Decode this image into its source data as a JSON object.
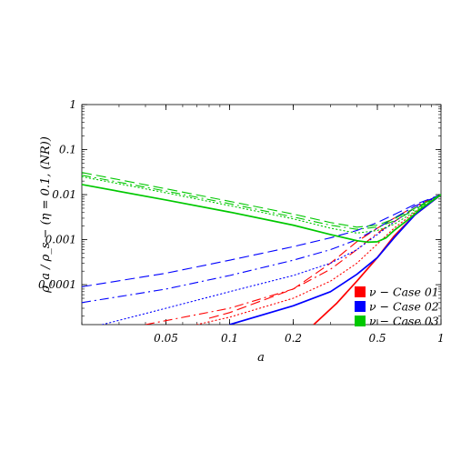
{
  "chart_data": {
    "type": "line",
    "xlabel": "a",
    "ylabel": "ρ_a / ρ_s − (η = 0.1, (NR))",
    "xscale": "log",
    "yscale": "log",
    "xlim": [
      0.02,
      1
    ],
    "ylim": [
      1.3e-05,
      1
    ],
    "grid": false,
    "legend_position": "bottom-right",
    "xticks": [
      {
        "value": 0.05,
        "label": "0.05"
      },
      {
        "value": 0.1,
        "label": "0.1"
      },
      {
        "value": 0.2,
        "label": "0.2"
      },
      {
        "value": 0.5,
        "label": "0.5"
      },
      {
        "value": 1,
        "label": "1"
      }
    ],
    "yticks": [
      {
        "value": 1,
        "label": "1"
      },
      {
        "value": 0.1,
        "label": "0.1"
      },
      {
        "value": 0.01,
        "label": "0.01"
      },
      {
        "value": 0.001,
        "label": "0.001"
      },
      {
        "value": 0.0001,
        "label": "0.0001"
      }
    ],
    "legend": [
      {
        "label": "ν − Case 01",
        "color": "#ff0000"
      },
      {
        "label": "ν − Case 02",
        "color": "#0000ff"
      },
      {
        "label": "ν − Case 03",
        "color": "#00c800"
      }
    ],
    "series": [
      {
        "group": 1,
        "color": "#ff0000",
        "style": "solid",
        "points": [
          [
            0.25,
            1.3e-05
          ],
          [
            0.32,
            3.8e-05
          ],
          [
            0.4,
            0.00012
          ],
          [
            0.5,
            0.0004
          ],
          [
            0.6,
            0.0012
          ],
          [
            0.75,
            0.0035
          ],
          [
            1,
            0.01
          ]
        ]
      },
      {
        "group": 1,
        "color": "#ff0000",
        "style": "dot",
        "points": [
          [
            0.07,
            1.3e-05
          ],
          [
            0.1,
            1.9e-05
          ],
          [
            0.2,
            5e-05
          ],
          [
            0.3,
            0.00012
          ],
          [
            0.4,
            0.0003
          ],
          [
            0.5,
            0.0008
          ],
          [
            0.6,
            0.0018
          ],
          [
            0.75,
            0.004
          ],
          [
            1,
            0.01
          ]
        ]
      },
      {
        "group": 1,
        "color": "#ff0000",
        "style": "dashdot",
        "points": [
          [
            0.04,
            1.3e-05
          ],
          [
            0.1,
            3e-05
          ],
          [
            0.2,
            8e-05
          ],
          [
            0.3,
            0.00022
          ],
          [
            0.4,
            0.0006
          ],
          [
            0.5,
            0.0014
          ],
          [
            0.6,
            0.0025
          ],
          [
            0.75,
            0.005
          ],
          [
            1,
            0.01
          ]
        ]
      },
      {
        "group": 1,
        "color": "#ff0000",
        "style": "dash",
        "points": [
          [
            0.08,
            1.8e-05
          ],
          [
            0.1,
            2.4e-05
          ],
          [
            0.2,
            8e-05
          ],
          [
            0.3,
            0.0003
          ],
          [
            0.4,
            0.0009
          ],
          [
            0.5,
            0.0018
          ],
          [
            0.6,
            0.003
          ],
          [
            0.75,
            0.0055
          ],
          [
            1,
            0.01
          ]
        ]
      },
      {
        "group": 2,
        "color": "#0000ff",
        "style": "solid",
        "points": [
          [
            0.1,
            1.3e-05
          ],
          [
            0.2,
            3.4e-05
          ],
          [
            0.3,
            7e-05
          ],
          [
            0.4,
            0.00017
          ],
          [
            0.5,
            0.0004
          ],
          [
            0.6,
            0.0011
          ],
          [
            0.75,
            0.0035
          ],
          [
            1,
            0.01
          ]
        ]
      },
      {
        "group": 2,
        "color": "#0000ff",
        "style": "dot",
        "points": [
          [
            0.025,
            1.3e-05
          ],
          [
            0.05,
            3e-05
          ],
          [
            0.1,
            7e-05
          ],
          [
            0.2,
            0.00016
          ],
          [
            0.3,
            0.0003
          ],
          [
            0.4,
            0.0006
          ],
          [
            0.5,
            0.0013
          ],
          [
            0.6,
            0.0025
          ],
          [
            0.75,
            0.005
          ],
          [
            1,
            0.01
          ]
        ]
      },
      {
        "group": 2,
        "color": "#0000ff",
        "style": "dashdot",
        "points": [
          [
            0.02,
            4e-05
          ],
          [
            0.05,
            8e-05
          ],
          [
            0.1,
            0.00016
          ],
          [
            0.2,
            0.00035
          ],
          [
            0.3,
            0.0006
          ],
          [
            0.4,
            0.001
          ],
          [
            0.5,
            0.0018
          ],
          [
            0.6,
            0.003
          ],
          [
            0.75,
            0.0055
          ],
          [
            1,
            0.01
          ]
        ]
      },
      {
        "group": 2,
        "color": "#0000ff",
        "style": "dash",
        "points": [
          [
            0.02,
            9e-05
          ],
          [
            0.05,
            0.00018
          ],
          [
            0.1,
            0.00035
          ],
          [
            0.2,
            0.0007
          ],
          [
            0.3,
            0.0011
          ],
          [
            0.4,
            0.0016
          ],
          [
            0.5,
            0.0024
          ],
          [
            0.6,
            0.0036
          ],
          [
            0.75,
            0.006
          ],
          [
            1,
            0.01
          ]
        ]
      },
      {
        "group": 3,
        "color": "#00c800",
        "style": "solid",
        "points": [
          [
            0.02,
            0.0168
          ],
          [
            0.05,
            0.0076
          ],
          [
            0.1,
            0.0041
          ],
          [
            0.2,
            0.0021
          ],
          [
            0.3,
            0.0013
          ],
          [
            0.4,
            0.00095
          ],
          [
            0.45,
            0.00088
          ],
          [
            0.5,
            0.0009
          ],
          [
            0.55,
            0.0011
          ],
          [
            0.6,
            0.0016
          ],
          [
            0.7,
            0.0028
          ],
          [
            0.8,
            0.0048
          ],
          [
            1,
            0.01
          ]
        ]
      },
      {
        "group": 3,
        "color": "#00c800",
        "style": "dot",
        "points": [
          [
            0.02,
            0.025
          ],
          [
            0.05,
            0.011
          ],
          [
            0.1,
            0.0057
          ],
          [
            0.2,
            0.0029
          ],
          [
            0.3,
            0.0018
          ],
          [
            0.4,
            0.0014
          ],
          [
            0.5,
            0.0016
          ],
          [
            0.6,
            0.0022
          ],
          [
            0.75,
            0.0042
          ],
          [
            1,
            0.01
          ]
        ]
      },
      {
        "group": 3,
        "color": "#00c800",
        "style": "dashdot",
        "points": [
          [
            0.02,
            0.027
          ],
          [
            0.05,
            0.012
          ],
          [
            0.1,
            0.0063
          ],
          [
            0.2,
            0.0032
          ],
          [
            0.3,
            0.0021
          ],
          [
            0.4,
            0.0017
          ],
          [
            0.5,
            0.0019
          ],
          [
            0.6,
            0.0026
          ],
          [
            0.75,
            0.0046
          ],
          [
            1,
            0.01
          ]
        ]
      },
      {
        "group": 3,
        "color": "#00c800",
        "style": "dash",
        "points": [
          [
            0.02,
            0.031
          ],
          [
            0.05,
            0.0135
          ],
          [
            0.1,
            0.0071
          ],
          [
            0.2,
            0.0037
          ],
          [
            0.3,
            0.0024
          ],
          [
            0.4,
            0.0019
          ],
          [
            0.5,
            0.0021
          ],
          [
            0.6,
            0.0029
          ],
          [
            0.75,
            0.005
          ],
          [
            1,
            0.01
          ]
        ]
      }
    ]
  }
}
